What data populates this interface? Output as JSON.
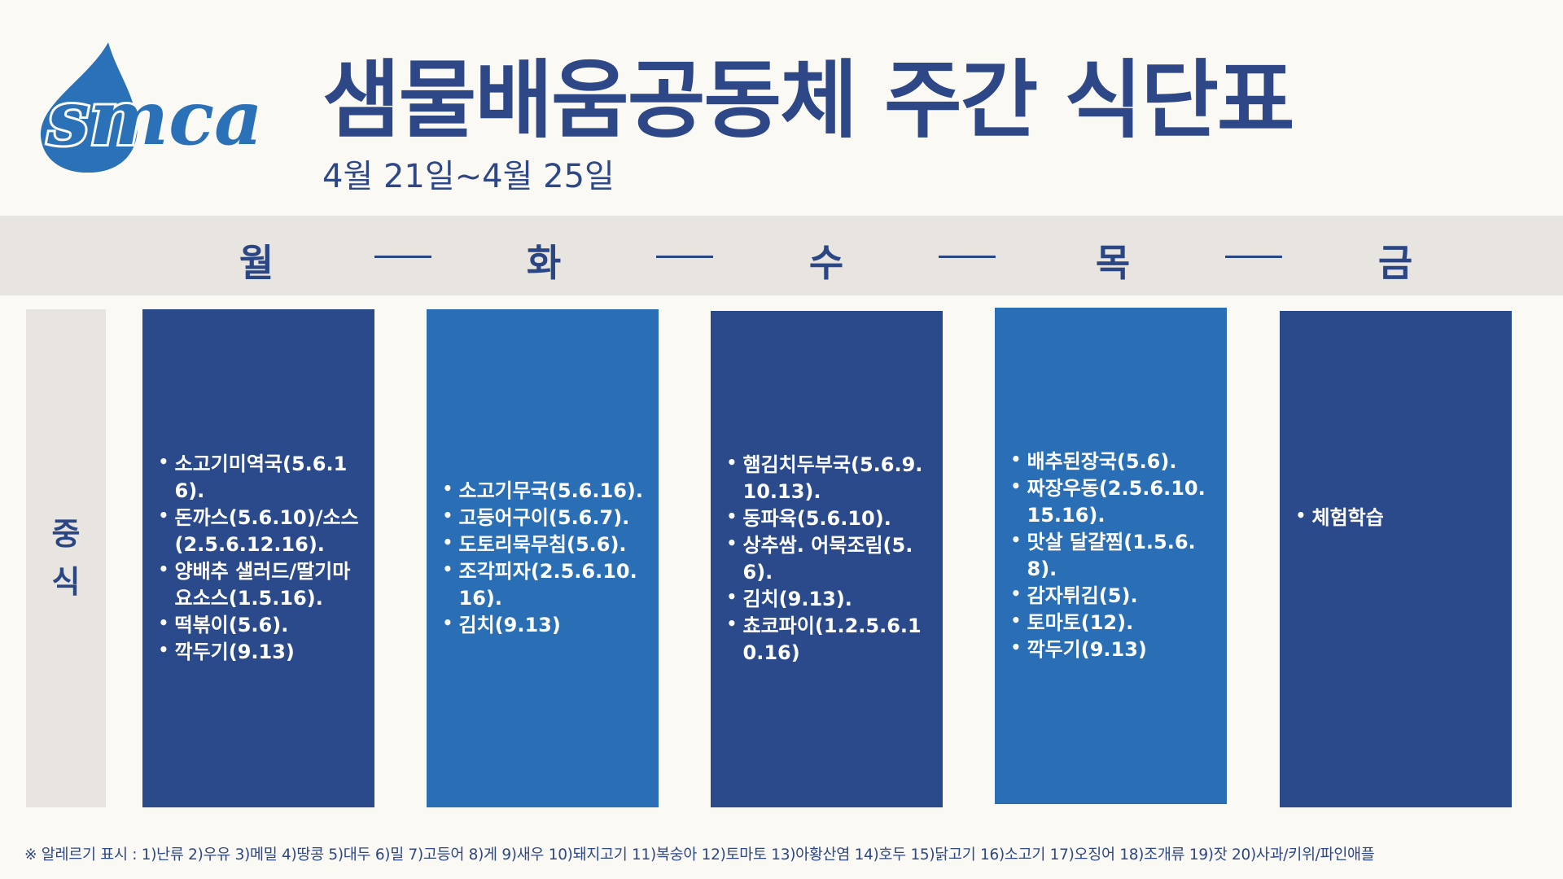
{
  "logo": {
    "text": "smca",
    "icon": "water-drop-icon",
    "color": "#2b71b8"
  },
  "header": {
    "title": "샘물배움공동체 주간 식단표",
    "date_range": "4월 21일~4월 25일"
  },
  "days": [
    "월",
    "화",
    "수",
    "목",
    "금"
  ],
  "meal_label": "중식",
  "menus": [
    {
      "day": "월",
      "items": [
        "소고기미역국(5.6.16).",
        "돈까스(5.6.10)/소스(2.5.6.12.16).",
        "양배추 샐러드/딸기마요소스(1.5.16).",
        "떡볶이(5.6).",
        "깍두기(9.13)"
      ]
    },
    {
      "day": "화",
      "items": [
        "소고기무국(5.6.16).",
        "고등어구이(5.6.7).",
        "도토리묵무침(5.6).",
        "조각피자(2.5.6.10.16).",
        "김치(9.13)"
      ]
    },
    {
      "day": "수",
      "items": [
        "햄김치두부국(5.6.9.10.13).",
        "동파육(5.6.10).",
        "상추쌈. 어묵조림(5.6).",
        "김치(9.13).",
        "쵸코파이(1.2.5.6.10.16)"
      ]
    },
    {
      "day": "목",
      "items": [
        "배추된장국(5.6).",
        "짜장우동(2.5.6.10.15.16).",
        "맛살 달걀찜(1.5.6.8).",
        "감자튀김(5).",
        "토마토(12).",
        "깍두기(9.13)"
      ]
    },
    {
      "day": "금",
      "items": [
        "체험학습"
      ]
    }
  ],
  "footnote": "※ 알레르기 표시 : 1)난류 2)우유 3)메밀 4)땅콩 5)대두 6)밀 7)고등어 8)게 9)새우 10)돼지고기 11)복숭아 12)토마토 13)아황산염 14)호두 15)닭고기 16)소고기 17)오징어 18)조개류 19)잣 20)사과/키위/파인애플",
  "colors": {
    "dark_box": "#2a4a8c",
    "light_box": "#2a6eb5",
    "header_bar": "#e8e5e0",
    "background": "#fbf9f4"
  }
}
